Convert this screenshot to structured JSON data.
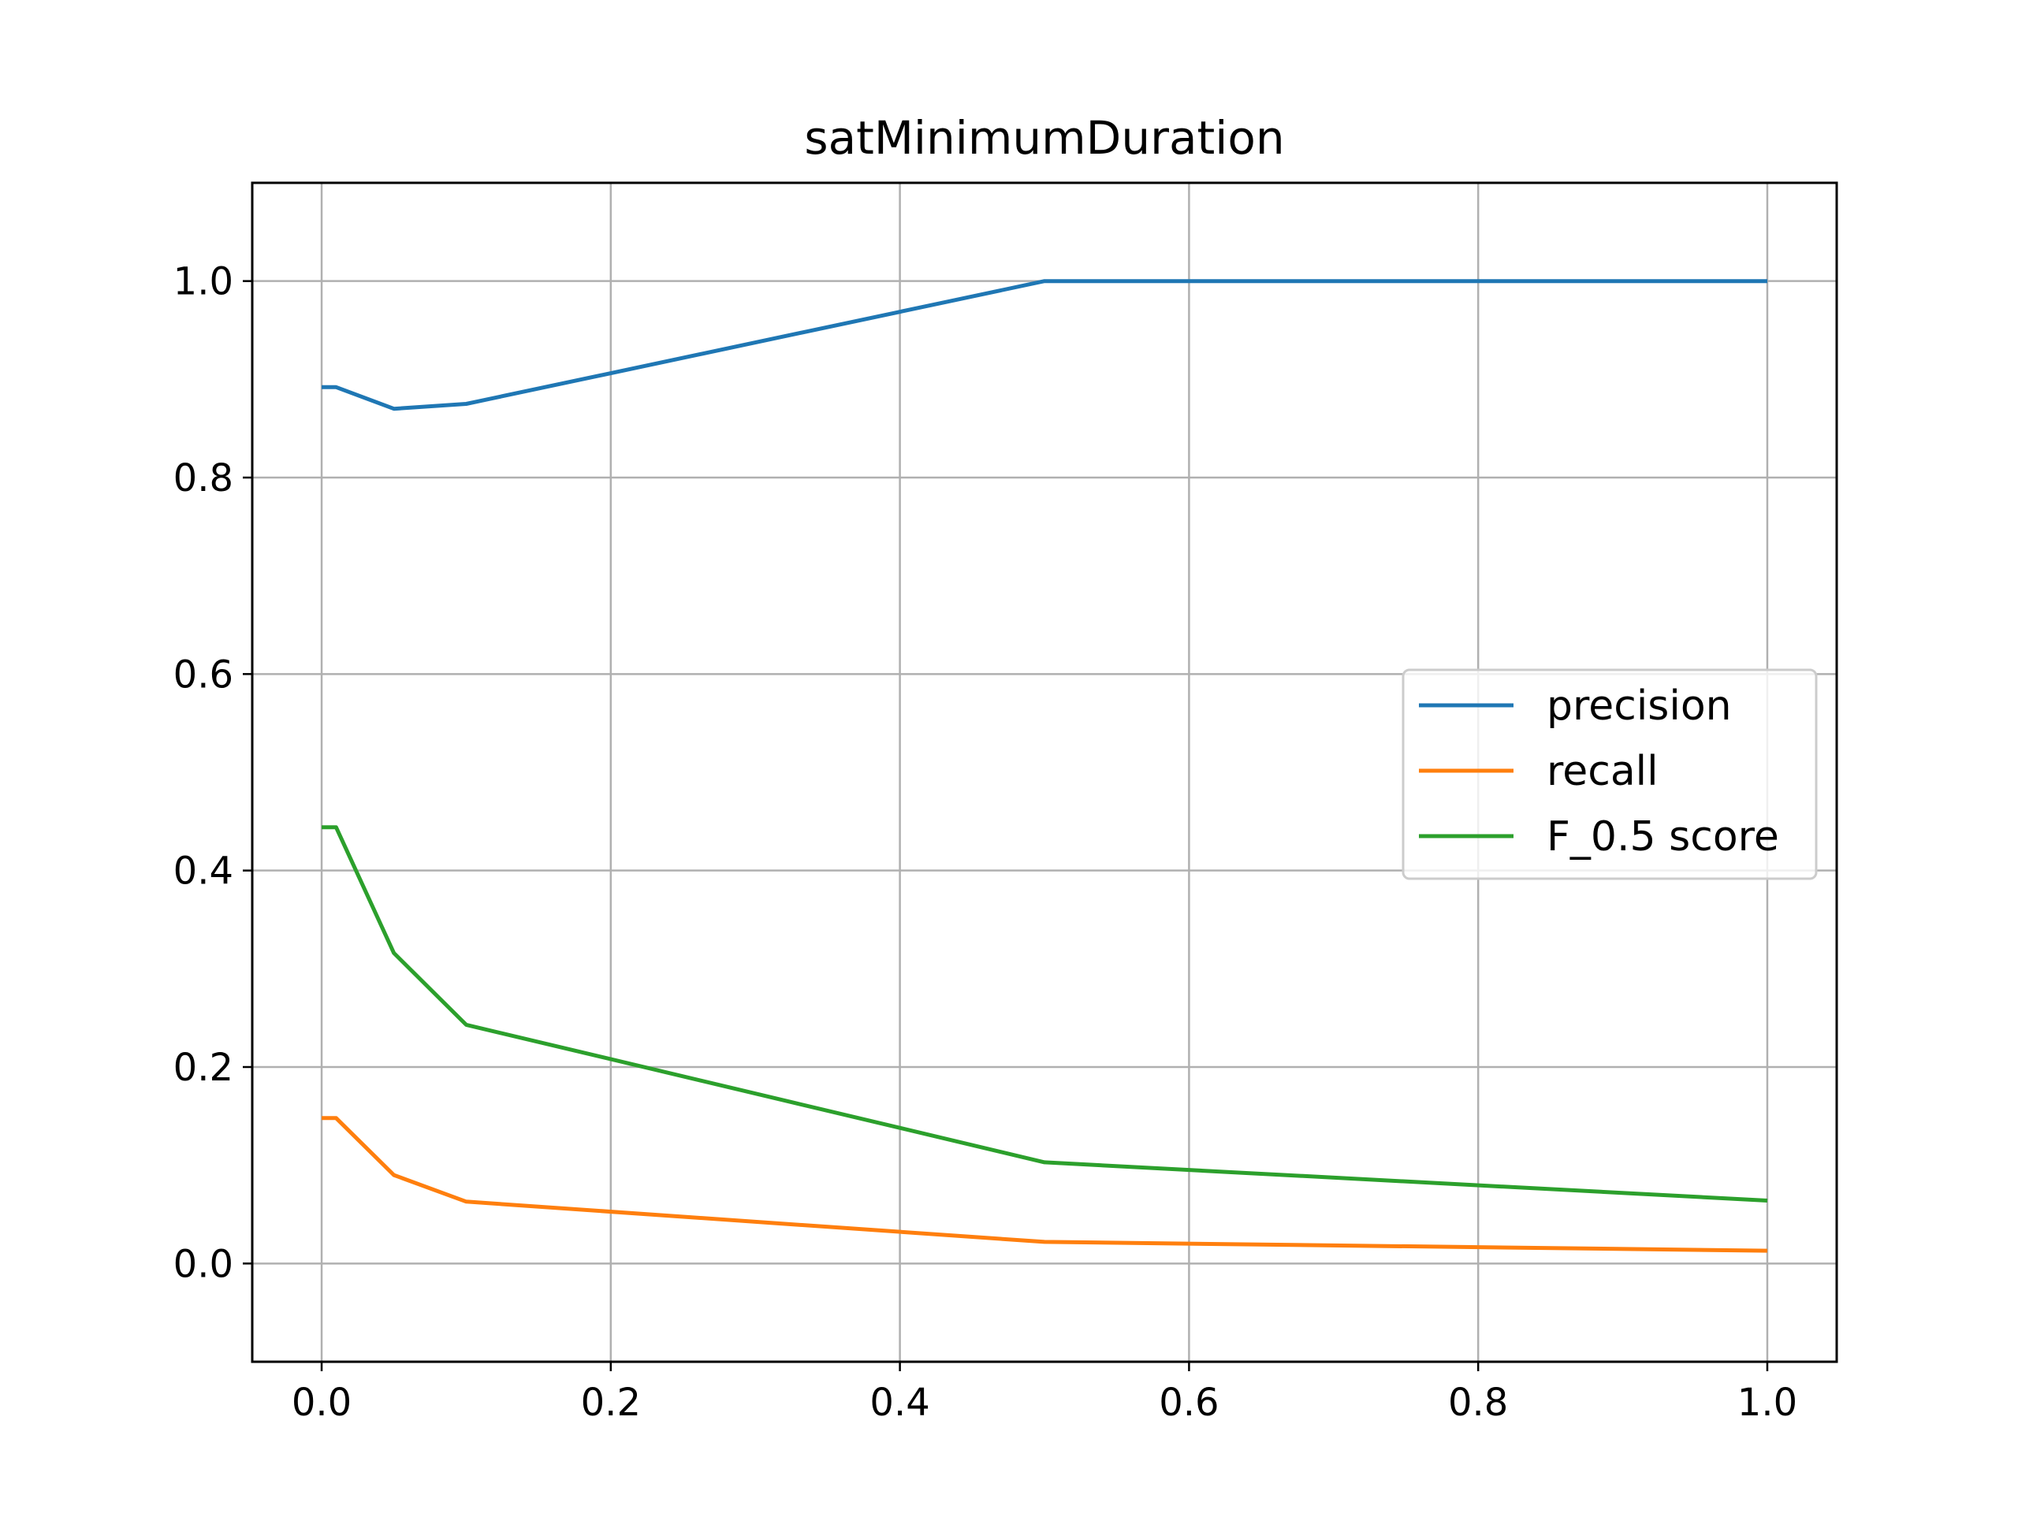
{
  "chart_data": {
    "type": "line",
    "title": "satMinimumDuration",
    "xlabel": "",
    "ylabel": "",
    "xlim": [
      -0.048,
      1.048
    ],
    "ylim": [
      -0.1,
      1.1
    ],
    "xticks": [
      "0.0",
      "0.2",
      "0.4",
      "0.6",
      "0.8",
      "1.0"
    ],
    "xtick_values": [
      0.0,
      0.2,
      0.4,
      0.6,
      0.8,
      1.0
    ],
    "yticks": [
      "0.0",
      "0.2",
      "0.4",
      "0.6",
      "0.8",
      "1.0"
    ],
    "ytick_values": [
      0.0,
      0.2,
      0.4,
      0.6,
      0.8,
      1.0
    ],
    "grid": true,
    "legend_position": "center-right",
    "x": [
      0.0,
      0.01,
      0.05,
      0.1,
      0.5,
      1.0
    ],
    "series": [
      {
        "name": "precision",
        "color": "#1f77b4",
        "values": [
          0.892,
          0.892,
          0.87,
          0.875,
          1.0,
          1.0
        ]
      },
      {
        "name": "recall",
        "color": "#ff7f0e",
        "values": [
          0.148,
          0.148,
          0.09,
          0.063,
          0.022,
          0.013
        ]
      },
      {
        "name": "F_0.5 score",
        "color": "#2ca02c",
        "values": [
          0.444,
          0.444,
          0.316,
          0.243,
          0.103,
          0.064
        ]
      }
    ]
  }
}
